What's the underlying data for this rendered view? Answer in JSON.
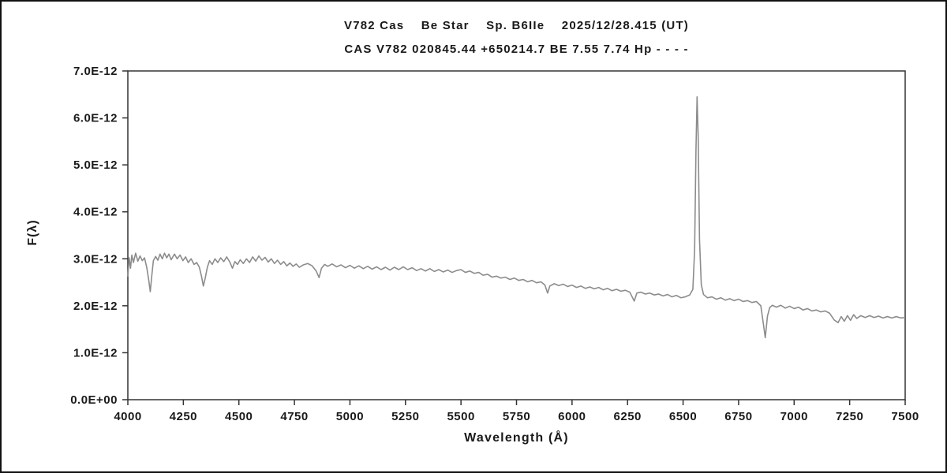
{
  "titles": {
    "line1": "V782 Cas    Be Star    Sp. B6IIe    2025/12/28.415 (UT)",
    "line2": "CAS V782 020845.44 +650214.7 BE 7.55 7.74 Hp - - - -"
  },
  "axes": {
    "x_label": "Wavelength (Å)",
    "y_label": "F(λ)"
  },
  "chart_data": {
    "type": "line",
    "title": "V782 Cas Be Star spectrum 2025/12/28.415 UT",
    "xlabel": "Wavelength (Å)",
    "ylabel": "F(λ)",
    "xlim": [
      4000,
      7500
    ],
    "ylim_1e12": [
      0,
      7
    ],
    "y_unit": "1e-12",
    "grid": false,
    "legend": "none",
    "x_ticks": [
      4000,
      4250,
      4500,
      4750,
      5000,
      5250,
      5500,
      5750,
      6000,
      6250,
      6500,
      6750,
      7000,
      7250,
      7500
    ],
    "y_ticks_1e12": [
      0,
      1,
      2,
      3,
      4,
      5,
      6,
      7
    ],
    "y_tick_labels": [
      "0.0E+00",
      "1.0E-12",
      "2.0E-12",
      "3.0E-12",
      "4.0E-12",
      "5.0E-12",
      "6.0E-12",
      "7.0E-12"
    ],
    "line_color": "#8c8c8c",
    "axis_color": "#333333",
    "features": [
      {
        "name": "H-delta absorption",
        "x": 4101,
        "y_1e12": 2.3
      },
      {
        "name": "H-gamma absorption",
        "x": 4340,
        "y_1e12": 2.42
      },
      {
        "name": "H-beta absorption",
        "x": 4861,
        "y_1e12": 2.6
      },
      {
        "name": "Na D absorption",
        "x": 5890,
        "y_1e12": 2.27
      },
      {
        "name": "H-alpha emission peak",
        "x": 6563,
        "y_1e12": 6.45
      },
      {
        "name": "telluric O2 B-band absorption",
        "x": 6870,
        "y_1e12": 1.32
      },
      {
        "name": "telluric H2O band",
        "x": 7200,
        "y_1e12": 1.64
      }
    ],
    "points_1e12": [
      [
        4000,
        2.62
      ],
      [
        4006,
        3.02
      ],
      [
        4012,
        2.8
      ],
      [
        4018,
        3.08
      ],
      [
        4025,
        2.92
      ],
      [
        4035,
        3.12
      ],
      [
        4045,
        2.95
      ],
      [
        4055,
        3.06
      ],
      [
        4065,
        2.96
      ],
      [
        4075,
        3.02
      ],
      [
        4085,
        2.82
      ],
      [
        4094,
        2.55
      ],
      [
        4101,
        2.3
      ],
      [
        4108,
        2.65
      ],
      [
        4115,
        2.96
      ],
      [
        4125,
        3.05
      ],
      [
        4135,
        2.97
      ],
      [
        4145,
        3.1
      ],
      [
        4155,
        3.0
      ],
      [
        4165,
        3.12
      ],
      [
        4175,
        3.02
      ],
      [
        4185,
        3.1
      ],
      [
        4195,
        2.98
      ],
      [
        4210,
        3.1
      ],
      [
        4222,
        3.0
      ],
      [
        4235,
        3.08
      ],
      [
        4248,
        2.96
      ],
      [
        4260,
        3.04
      ],
      [
        4272,
        2.92
      ],
      [
        4285,
        3.0
      ],
      [
        4298,
        2.88
      ],
      [
        4310,
        2.92
      ],
      [
        4322,
        2.82
      ],
      [
        4332,
        2.62
      ],
      [
        4340,
        2.42
      ],
      [
        4348,
        2.58
      ],
      [
        4358,
        2.82
      ],
      [
        4368,
        2.96
      ],
      [
        4380,
        2.88
      ],
      [
        4392,
        3.0
      ],
      [
        4405,
        2.92
      ],
      [
        4418,
        3.02
      ],
      [
        4432,
        2.94
      ],
      [
        4445,
        3.04
      ],
      [
        4458,
        2.94
      ],
      [
        4471,
        2.8
      ],
      [
        4482,
        2.94
      ],
      [
        4494,
        2.88
      ],
      [
        4506,
        2.98
      ],
      [
        4520,
        2.9
      ],
      [
        4534,
        3.0
      ],
      [
        4548,
        2.92
      ],
      [
        4562,
        3.04
      ],
      [
        4576,
        2.95
      ],
      [
        4590,
        3.06
      ],
      [
        4604,
        2.97
      ],
      [
        4618,
        3.03
      ],
      [
        4632,
        2.93
      ],
      [
        4646,
        3.0
      ],
      [
        4660,
        2.9
      ],
      [
        4674,
        2.97
      ],
      [
        4688,
        2.88
      ],
      [
        4702,
        2.94
      ],
      [
        4716,
        2.85
      ],
      [
        4730,
        2.91
      ],
      [
        4744,
        2.84
      ],
      [
        4758,
        2.89
      ],
      [
        4772,
        2.82
      ],
      [
        4790,
        2.87
      ],
      [
        4810,
        2.9
      ],
      [
        4830,
        2.85
      ],
      [
        4848,
        2.74
      ],
      [
        4861,
        2.6
      ],
      [
        4872,
        2.8
      ],
      [
        4886,
        2.88
      ],
      [
        4900,
        2.84
      ],
      [
        4920,
        2.89
      ],
      [
        4940,
        2.83
      ],
      [
        4960,
        2.87
      ],
      [
        4980,
        2.81
      ],
      [
        5000,
        2.86
      ],
      [
        5020,
        2.8
      ],
      [
        5040,
        2.85
      ],
      [
        5060,
        2.79
      ],
      [
        5080,
        2.84
      ],
      [
        5100,
        2.78
      ],
      [
        5120,
        2.83
      ],
      [
        5140,
        2.77
      ],
      [
        5160,
        2.82
      ],
      [
        5180,
        2.76
      ],
      [
        5200,
        2.82
      ],
      [
        5220,
        2.77
      ],
      [
        5240,
        2.83
      ],
      [
        5260,
        2.77
      ],
      [
        5280,
        2.81
      ],
      [
        5300,
        2.75
      ],
      [
        5320,
        2.79
      ],
      [
        5340,
        2.74
      ],
      [
        5360,
        2.79
      ],
      [
        5380,
        2.73
      ],
      [
        5400,
        2.77
      ],
      [
        5420,
        2.72
      ],
      [
        5440,
        2.76
      ],
      [
        5460,
        2.71
      ],
      [
        5480,
        2.75
      ],
      [
        5500,
        2.77
      ],
      [
        5520,
        2.71
      ],
      [
        5540,
        2.74
      ],
      [
        5560,
        2.69
      ],
      [
        5580,
        2.71
      ],
      [
        5600,
        2.65
      ],
      [
        5620,
        2.67
      ],
      [
        5640,
        2.61
      ],
      [
        5660,
        2.63
      ],
      [
        5680,
        2.59
      ],
      [
        5700,
        2.61
      ],
      [
        5720,
        2.56
      ],
      [
        5740,
        2.59
      ],
      [
        5760,
        2.54
      ],
      [
        5780,
        2.56
      ],
      [
        5800,
        2.51
      ],
      [
        5820,
        2.54
      ],
      [
        5840,
        2.49
      ],
      [
        5860,
        2.51
      ],
      [
        5878,
        2.44
      ],
      [
        5890,
        2.27
      ],
      [
        5900,
        2.42
      ],
      [
        5920,
        2.47
      ],
      [
        5940,
        2.43
      ],
      [
        5960,
        2.46
      ],
      [
        5980,
        2.41
      ],
      [
        6000,
        2.44
      ],
      [
        6020,
        2.39
      ],
      [
        6040,
        2.42
      ],
      [
        6060,
        2.37
      ],
      [
        6080,
        2.4
      ],
      [
        6100,
        2.36
      ],
      [
        6120,
        2.39
      ],
      [
        6140,
        2.34
      ],
      [
        6160,
        2.37
      ],
      [
        6180,
        2.32
      ],
      [
        6200,
        2.35
      ],
      [
        6220,
        2.31
      ],
      [
        6240,
        2.33
      ],
      [
        6260,
        2.29
      ],
      [
        6280,
        2.1
      ],
      [
        6292,
        2.27
      ],
      [
        6310,
        2.29
      ],
      [
        6330,
        2.25
      ],
      [
        6350,
        2.27
      ],
      [
        6370,
        2.23
      ],
      [
        6390,
        2.25
      ],
      [
        6410,
        2.21
      ],
      [
        6430,
        2.24
      ],
      [
        6450,
        2.19
      ],
      [
        6470,
        2.22
      ],
      [
        6490,
        2.17
      ],
      [
        6510,
        2.19
      ],
      [
        6530,
        2.23
      ],
      [
        6544,
        2.35
      ],
      [
        6552,
        3.2
      ],
      [
        6558,
        5.3
      ],
      [
        6563,
        6.45
      ],
      [
        6568,
        5.6
      ],
      [
        6574,
        3.4
      ],
      [
        6582,
        2.45
      ],
      [
        6592,
        2.24
      ],
      [
        6610,
        2.17
      ],
      [
        6630,
        2.19
      ],
      [
        6650,
        2.14
      ],
      [
        6670,
        2.17
      ],
      [
        6690,
        2.12
      ],
      [
        6710,
        2.15
      ],
      [
        6730,
        2.11
      ],
      [
        6750,
        2.14
      ],
      [
        6770,
        2.09
      ],
      [
        6790,
        2.11
      ],
      [
        6810,
        2.07
      ],
      [
        6830,
        2.09
      ],
      [
        6850,
        2.0
      ],
      [
        6862,
        1.6
      ],
      [
        6870,
        1.32
      ],
      [
        6880,
        1.78
      ],
      [
        6890,
        1.96
      ],
      [
        6902,
        2.01
      ],
      [
        6920,
        1.97
      ],
      [
        6940,
        2.01
      ],
      [
        6960,
        1.95
      ],
      [
        6980,
        1.99
      ],
      [
        7000,
        1.94
      ],
      [
        7020,
        1.97
      ],
      [
        7040,
        1.91
      ],
      [
        7060,
        1.94
      ],
      [
        7080,
        1.89
      ],
      [
        7100,
        1.91
      ],
      [
        7120,
        1.87
      ],
      [
        7140,
        1.89
      ],
      [
        7160,
        1.84
      ],
      [
        7180,
        1.7
      ],
      [
        7198,
        1.64
      ],
      [
        7212,
        1.77
      ],
      [
        7226,
        1.67
      ],
      [
        7240,
        1.79
      ],
      [
        7254,
        1.69
      ],
      [
        7268,
        1.81
      ],
      [
        7282,
        1.73
      ],
      [
        7300,
        1.79
      ],
      [
        7320,
        1.75
      ],
      [
        7340,
        1.79
      ],
      [
        7360,
        1.75
      ],
      [
        7380,
        1.78
      ],
      [
        7400,
        1.74
      ],
      [
        7420,
        1.77
      ],
      [
        7440,
        1.74
      ],
      [
        7460,
        1.77
      ],
      [
        7480,
        1.74
      ],
      [
        7500,
        1.75
      ]
    ]
  }
}
